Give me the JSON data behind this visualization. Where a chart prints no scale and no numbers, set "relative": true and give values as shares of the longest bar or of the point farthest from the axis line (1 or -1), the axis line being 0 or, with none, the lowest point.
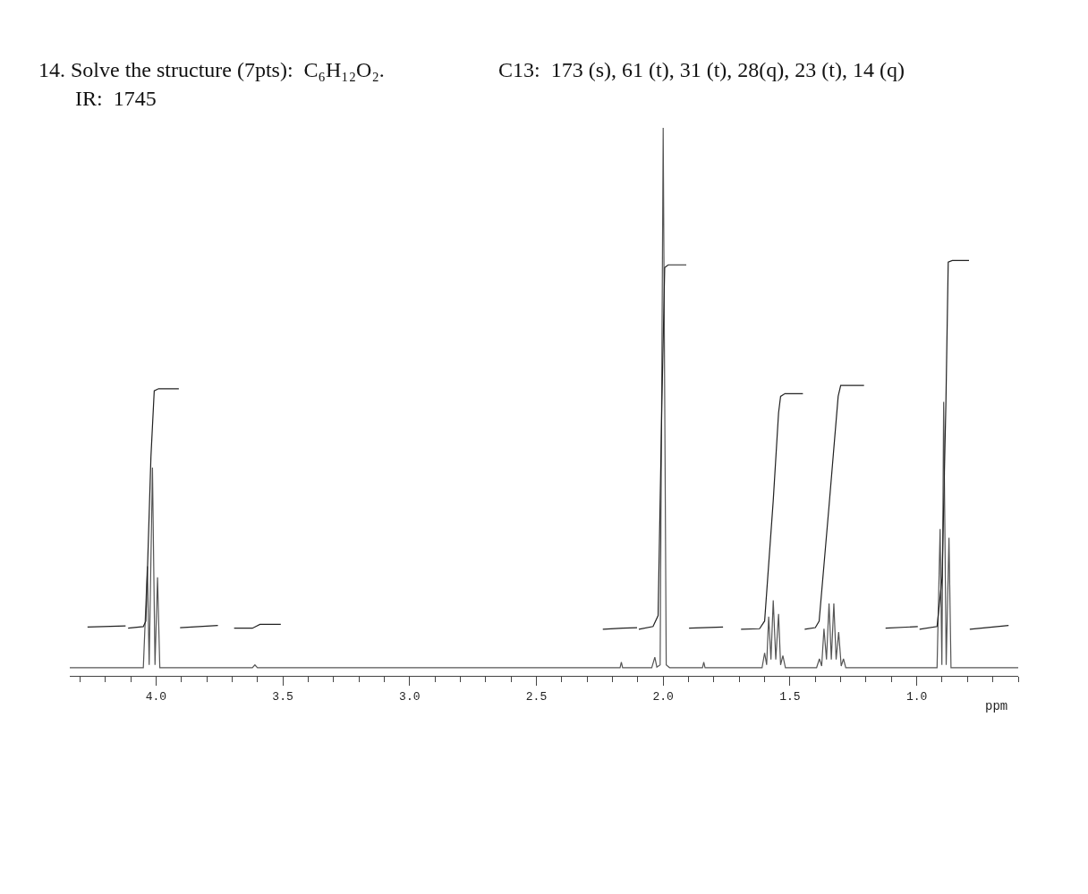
{
  "chart_data": {
    "type": "line",
    "title": "14. Solve the structure (7pts):  C₆H₁₂O₂.",
    "subtitle": "IR:  1745",
    "annotations": [
      "C13:  173 (s), 61 (t), 31 (t), 28(q), 23 (t), 14 (q)"
    ],
    "xlabel": "ppm",
    "relative": true,
    "grid": false,
    "marker": "none",
    "line_style": "solid",
    "tick_labels": "x",
    "xlim": [
      4.34,
      0.6
    ],
    "xticks": [
      {
        "value": 4.3,
        "label": null
      },
      {
        "value": 4.2,
        "label": null
      },
      {
        "value": 4.1,
        "label": null
      },
      {
        "value": 4,
        "label": "4.0"
      },
      {
        "value": 3.9,
        "label": null
      },
      {
        "value": 3.8,
        "label": null
      },
      {
        "value": 3.7,
        "label": null
      },
      {
        "value": 3.6,
        "label": null
      },
      {
        "value": 3.5,
        "label": "3.5"
      },
      {
        "value": 3.4,
        "label": null
      },
      {
        "value": 3.3,
        "label": null
      },
      {
        "value": 3.2,
        "label": null
      },
      {
        "value": 3.1,
        "label": null
      },
      {
        "value": 3,
        "label": "3.0"
      },
      {
        "value": 2.9,
        "label": null
      },
      {
        "value": 2.8,
        "label": null
      },
      {
        "value": 2.7,
        "label": null
      },
      {
        "value": 2.6,
        "label": null
      },
      {
        "value": 2.5,
        "label": "2.5"
      },
      {
        "value": 2.4,
        "label": null
      },
      {
        "value": 2.3,
        "label": null
      },
      {
        "value": 2.2,
        "label": null
      },
      {
        "value": 2.1,
        "label": null
      },
      {
        "value": 2,
        "label": "2.0"
      },
      {
        "value": 1.9,
        "label": null
      },
      {
        "value": 1.8,
        "label": null
      },
      {
        "value": 1.7,
        "label": null
      },
      {
        "value": 1.6,
        "label": null
      },
      {
        "value": 1.5,
        "label": "1.5"
      },
      {
        "value": 1.4,
        "label": null
      },
      {
        "value": 1.3,
        "label": null
      },
      {
        "value": 1.2,
        "label": null
      },
      {
        "value": 1.1,
        "label": null
      },
      {
        "value": 1,
        "label": "1.0"
      },
      {
        "value": 0.9,
        "label": null
      },
      {
        "value": 0.8,
        "label": null
      },
      {
        "value": 0.7,
        "label": null
      },
      {
        "value": 0.6,
        "label": null
      }
    ],
    "series": [
      {
        "color": "#555555",
        "x": [
          4.34,
          4.05,
          4.034,
          4.027,
          4.014,
          4.004,
          3.994,
          3.985,
          3.62,
          3.61,
          3.6,
          2.17,
          2.165,
          2.16,
          2.045,
          2.033,
          2.025,
          2.012,
          2.0,
          1.988,
          1.975,
          1.845,
          1.84,
          1.835,
          1.61,
          1.6,
          1.592,
          1.584,
          1.575,
          1.566,
          1.556,
          1.545,
          1.537,
          1.528,
          1.518,
          1.395,
          1.384,
          1.375,
          1.366,
          1.356,
          1.346,
          1.337,
          1.327,
          1.318,
          1.308,
          1.298,
          1.289,
          1.28,
          0.92,
          0.908,
          0.901,
          0.894,
          0.884,
          0.873,
          0.865,
          0.6
        ],
        "values": [
          0.015,
          0.015,
          0.2,
          0.02,
          0.38,
          0.02,
          0.18,
          0.015,
          0.015,
          0.02,
          0.015,
          0.015,
          0.025,
          0.015,
          0.015,
          0.034,
          0.016,
          0.02,
          1.0,
          0.02,
          0.015,
          0.015,
          0.025,
          0.015,
          0.015,
          0.042,
          0.02,
          0.108,
          0.03,
          0.138,
          0.03,
          0.113,
          0.02,
          0.037,
          0.015,
          0.015,
          0.031,
          0.018,
          0.086,
          0.03,
          0.132,
          0.03,
          0.132,
          0.03,
          0.08,
          0.018,
          0.031,
          0.015,
          0.015,
          0.268,
          0.02,
          0.5,
          0.02,
          0.252,
          0.015,
          0.015
        ]
      },
      {
        "color": "#222222",
        "x": [
          4.27,
          4.12,
          4.115,
          4.11,
          4.05,
          4.04,
          4.034,
          4.02,
          4.007,
          3.99,
          3.91,
          3.908,
          3.905,
          3.756,
          3.73,
          3.692,
          3.62,
          3.59,
          3.508,
          3.3,
          2.238,
          2.16,
          2.103,
          2.1,
          2.096,
          2.04,
          2.02,
          2.005,
          1.994,
          1.98,
          1.909,
          1.9,
          1.898,
          1.764,
          1.72,
          1.693,
          1.62,
          1.6,
          1.566,
          1.545,
          1.537,
          1.52,
          1.449,
          1.445,
          1.442,
          1.4,
          1.385,
          1.346,
          1.31,
          1.3,
          1.208,
          1.15,
          1.123,
          0.996,
          0.993,
          0.989,
          0.92,
          0.9,
          0.885,
          0.876,
          0.86,
          0.794,
          0.793,
          0.791,
          0.638
        ],
        "values": [
          0.089,
          0.091,
          null,
          0.087,
          0.09,
          0.1,
          0.19,
          0.4,
          0.52,
          0.524,
          0.524,
          null,
          0.088,
          0.092,
          null,
          0.087,
          0.087,
          0.094,
          0.094,
          null,
          0.085,
          0.087,
          0.088,
          null,
          0.085,
          0.09,
          0.11,
          0.5,
          0.745,
          0.75,
          0.75,
          null,
          0.087,
          0.089,
          null,
          0.085,
          0.086,
          0.1,
          0.32,
          0.48,
          0.51,
          0.515,
          0.515,
          null,
          0.085,
          0.088,
          0.1,
          0.31,
          0.51,
          0.53,
          0.53,
          null,
          0.087,
          0.09,
          null,
          0.085,
          0.09,
          0.18,
          0.5,
          0.755,
          0.758,
          0.758,
          null,
          0.085,
          0.092
        ]
      }
    ]
  }
}
